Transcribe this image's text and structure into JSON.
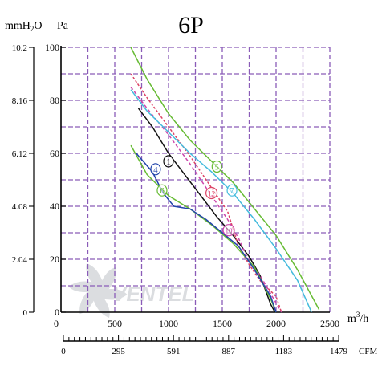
{
  "chart_data": {
    "type": "line",
    "title": "6P",
    "unit_left": "mmH2O",
    "unit_left_sub": "2",
    "unit_left_pre": "mmH",
    "unit_left_post": "O",
    "unit_right": "Pa",
    "x_unit": "m³/h",
    "x_unit_base": "m",
    "x_unit_sup": "3",
    "x_unit_tail": "/h",
    "cfm_unit": "CFM",
    "xlim": [
      0,
      2500
    ],
    "ylim": [
      0,
      100
    ],
    "x_ticks": [
      "0",
      "500",
      "1000",
      "1500",
      "2000",
      "2500"
    ],
    "y_ticks_pa": [
      "0",
      "20",
      "40",
      "60",
      "80",
      "100"
    ],
    "y_ticks_mm": [
      "0",
      "2.04",
      "4.08",
      "6.12",
      "8.16",
      "10.2"
    ],
    "cfm_ticks": [
      "0",
      "295",
      "591",
      "887",
      "1183",
      "1479"
    ],
    "grid": true,
    "series": [
      {
        "name": "1",
        "color": "#111111",
        "dash": "",
        "label_at": [
          1000,
          57
        ],
        "points": [
          [
            720,
            77
          ],
          [
            850,
            70
          ],
          [
            1000,
            60
          ],
          [
            1150,
            52
          ],
          [
            1300,
            44
          ],
          [
            1450,
            36
          ],
          [
            1600,
            29
          ],
          [
            1750,
            21
          ],
          [
            1850,
            14
          ],
          [
            1950,
            3
          ],
          [
            1990,
            0
          ]
        ]
      },
      {
        "name": "10",
        "color": "#cc44aa",
        "dash": "4,3",
        "label_at": [
          1560,
          31
        ],
        "points": [
          [
            650,
            85
          ],
          [
            800,
            77
          ],
          [
            1000,
            67
          ],
          [
            1200,
            56
          ],
          [
            1400,
            44
          ],
          [
            1550,
            35
          ],
          [
            1650,
            28
          ],
          [
            1750,
            19
          ],
          [
            1850,
            14
          ],
          [
            1950,
            7
          ],
          [
            2050,
            0
          ]
        ]
      },
      {
        "name": "12",
        "color": "#dd4466",
        "dash": "3,2",
        "label_at": [
          1400,
          45
        ],
        "points": [
          [
            650,
            90
          ],
          [
            800,
            81
          ],
          [
            1000,
            70
          ],
          [
            1200,
            59
          ],
          [
            1350,
            50
          ],
          [
            1450,
            44
          ],
          [
            1550,
            38
          ],
          [
            1650,
            25
          ],
          [
            1750,
            18
          ],
          [
            1850,
            12
          ],
          [
            2000,
            6
          ],
          [
            2050,
            0
          ]
        ]
      },
      {
        "name": "7",
        "color": "#44bbdd",
        "dash": "",
        "label_at": [
          1590,
          46
        ],
        "points": [
          [
            650,
            84
          ],
          [
            800,
            76
          ],
          [
            1000,
            68
          ],
          [
            1200,
            60
          ],
          [
            1400,
            53
          ],
          [
            1600,
            45
          ],
          [
            1800,
            35
          ],
          [
            2000,
            24
          ],
          [
            2200,
            12
          ],
          [
            2330,
            0
          ]
        ]
      },
      {
        "name": "5",
        "color": "#66bb33",
        "dash": "",
        "label_at": [
          1450,
          55
        ],
        "points": [
          [
            650,
            100
          ],
          [
            800,
            88
          ],
          [
            1000,
            75
          ],
          [
            1200,
            65
          ],
          [
            1400,
            57
          ],
          [
            1600,
            49
          ],
          [
            1800,
            39
          ],
          [
            2000,
            29
          ],
          [
            2200,
            16
          ],
          [
            2400,
            1
          ]
        ]
      },
      {
        "name": "6",
        "color": "#66bb33",
        "dash": "",
        "label_at": [
          940,
          46
        ],
        "points": [
          [
            650,
            63
          ],
          [
            800,
            52
          ],
          [
            1000,
            44
          ],
          [
            1200,
            39
          ],
          [
            1400,
            33
          ],
          [
            1600,
            26
          ],
          [
            1800,
            17
          ],
          [
            1950,
            5
          ],
          [
            2000,
            0
          ]
        ]
      },
      {
        "name": "4",
        "color": "#2244aa",
        "dash": "",
        "label_at": [
          880,
          54
        ],
        "points": [
          [
            700,
            60
          ],
          [
            850,
            53
          ],
          [
            950,
            45
          ],
          [
            1050,
            40
          ],
          [
            1200,
            39
          ],
          [
            1350,
            35
          ],
          [
            1500,
            30
          ],
          [
            1650,
            25
          ],
          [
            1800,
            16
          ],
          [
            1950,
            6
          ],
          [
            2000,
            0
          ]
        ]
      }
    ]
  },
  "watermark": "VENTEL"
}
